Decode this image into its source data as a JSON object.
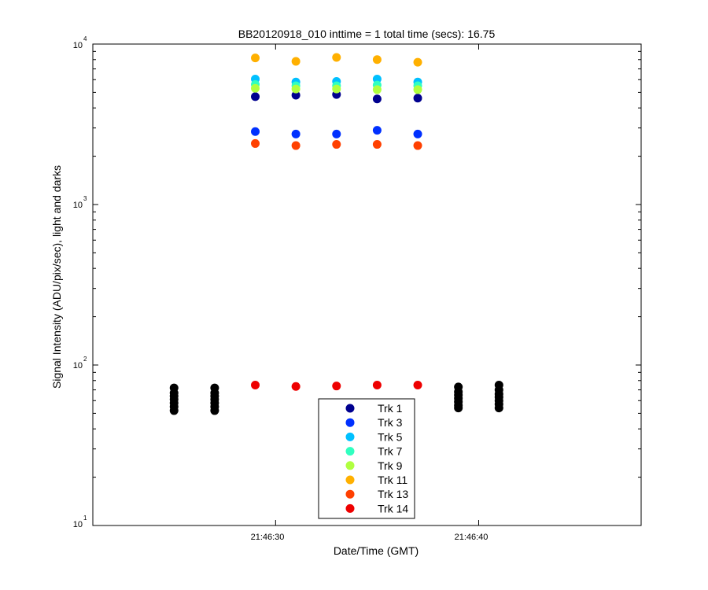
{
  "chart_data": {
    "type": "scatter",
    "title": "BB20120918_010 inttime = 1 total time (secs): 16.75",
    "xlabel": "Date/Time (GMT)",
    "ylabel": "Signal Intensity (ADU/pix/sec), light and darks",
    "yscale": "log",
    "ylim": [
      10,
      10000
    ],
    "xlim": [
      "21:46:21",
      "21:46:48"
    ],
    "y_ticks": [
      {
        "base": "10",
        "exp": "1"
      },
      {
        "base": "10",
        "exp": "2"
      },
      {
        "base": "10",
        "exp": "3"
      },
      {
        "base": "10",
        "exp": "4"
      }
    ],
    "x_ticks": [
      "21:46:30",
      "21:46:40"
    ],
    "grid": false,
    "legend_position": "bottom-center",
    "series": [
      {
        "name": "Trk 1",
        "color": "#00008f",
        "x": [
          "21:46:29",
          "21:46:31",
          "21:46:33",
          "21:46:35",
          "21:46:37"
        ],
        "y": [
          4700,
          4800,
          4850,
          4550,
          4600
        ]
      },
      {
        "name": "Trk 3",
        "color": "#0030ff",
        "x": [
          "21:46:29",
          "21:46:31",
          "21:46:33",
          "21:46:35",
          "21:46:37"
        ],
        "y": [
          2850,
          2750,
          2750,
          2900,
          2750
        ]
      },
      {
        "name": "Trk 5",
        "color": "#00c0ff",
        "x": [
          "21:46:29",
          "21:46:31",
          "21:46:33",
          "21:46:35",
          "21:46:37"
        ],
        "y": [
          6050,
          5800,
          5850,
          6050,
          5800
        ]
      },
      {
        "name": "Trk 7",
        "color": "#30ffc0",
        "x": [
          "21:46:29",
          "21:46:31",
          "21:46:33",
          "21:46:35",
          "21:46:37"
        ],
        "y": [
          5600,
          5500,
          5500,
          5550,
          5500
        ]
      },
      {
        "name": "Trk 9",
        "color": "#b0ff40",
        "x": [
          "21:46:29",
          "21:46:31",
          "21:46:33",
          "21:46:35",
          "21:46:37"
        ],
        "y": [
          5300,
          5250,
          5250,
          5200,
          5200
        ]
      },
      {
        "name": "Trk 11",
        "color": "#ffb000",
        "x": [
          "21:46:29",
          "21:46:31",
          "21:46:33",
          "21:46:35",
          "21:46:37"
        ],
        "y": [
          8200,
          7800,
          8250,
          8000,
          7700
        ]
      },
      {
        "name": "Trk 13",
        "color": "#ff4000",
        "x": [
          "21:46:29",
          "21:46:31",
          "21:46:33",
          "21:46:35",
          "21:46:37"
        ],
        "y": [
          2400,
          2330,
          2370,
          2370,
          2330
        ]
      },
      {
        "name": "Trk 14",
        "color": "#ee0000",
        "x": [
          "21:46:29",
          "21:46:31",
          "21:46:33",
          "21:46:35",
          "21:46:37"
        ],
        "y": [
          75,
          73.5,
          74,
          75,
          75
        ]
      }
    ],
    "darks": {
      "color": "#000000",
      "groups": [
        {
          "x": "21:46:25",
          "y": [
            72,
            67,
            64,
            61,
            58,
            55,
            52
          ]
        },
        {
          "x": "21:46:27",
          "y": [
            72,
            67,
            64,
            61,
            58,
            55,
            52
          ]
        },
        {
          "x": "21:46:39",
          "y": [
            73,
            68,
            65,
            62,
            59,
            56,
            54
          ]
        },
        {
          "x": "21:46:41",
          "y": [
            75,
            70,
            66,
            63,
            60,
            57,
            54
          ]
        }
      ]
    }
  }
}
